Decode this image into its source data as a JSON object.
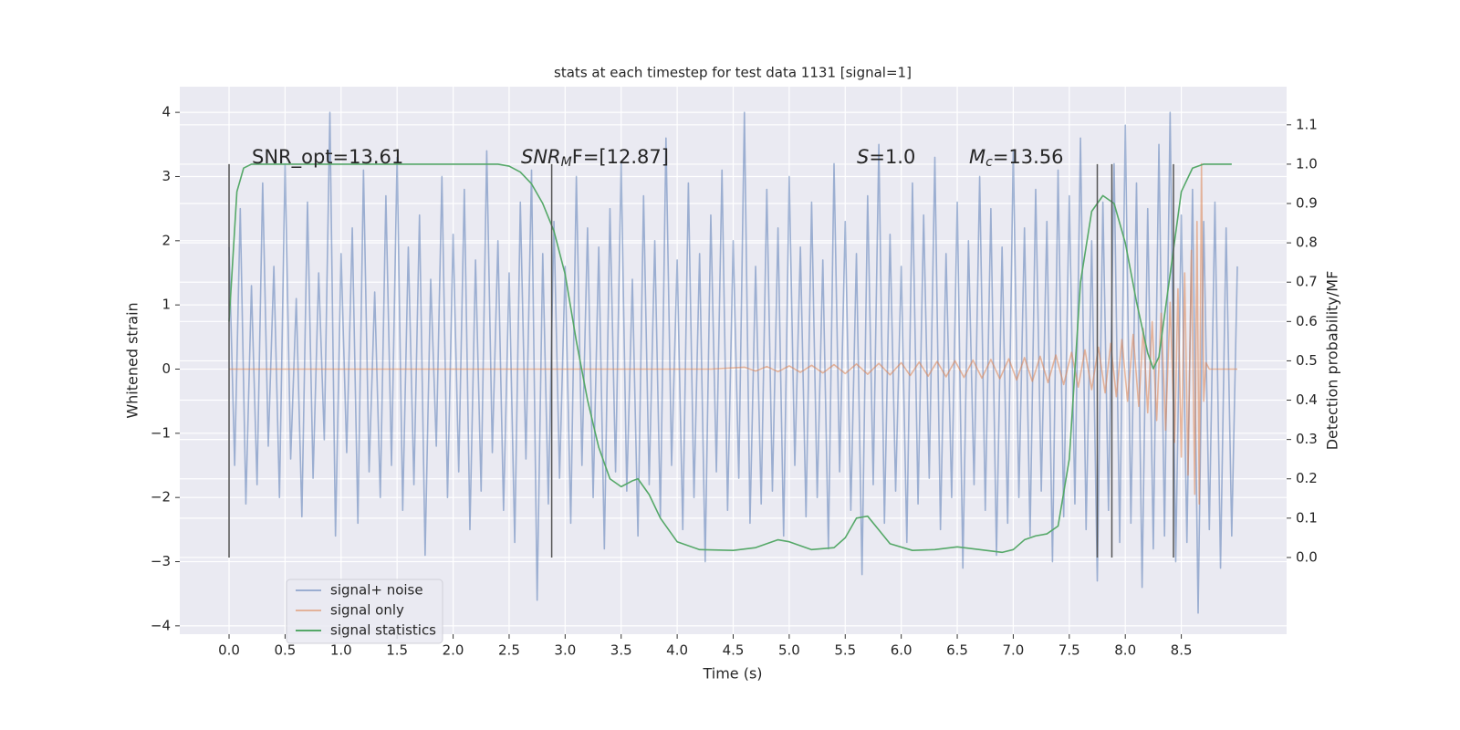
{
  "chart_data": {
    "type": "line",
    "title": "stats at each timestep for test data 1131 [signal=1]",
    "xlabel": "Time (s)",
    "ylabel": "Whitened strain",
    "y2label": "Detection probability/MF",
    "grid": true,
    "legend": "lower left",
    "xlim": [
      -0.44,
      9.44
    ],
    "ylim": [
      -4.13,
      4.4
    ],
    "y2lim": [
      -0.195,
      1.197
    ],
    "xticks": [
      {
        "value": 0,
        "label": "0.0"
      },
      0.5,
      {
        "value": 1,
        "label": "1.0"
      },
      1.5,
      {
        "value": 2,
        "label": "2.0"
      },
      2.5,
      {
        "value": 3,
        "label": "3.0"
      },
      3.5,
      {
        "value": 4,
        "label": "4.0"
      },
      4.5,
      {
        "value": 5,
        "label": "5.0"
      },
      5.5,
      {
        "value": 6,
        "label": "6.0"
      },
      6.5,
      {
        "value": 7,
        "label": "7.0"
      },
      7.5,
      {
        "value": 8,
        "label": "8.0"
      },
      8.5
    ],
    "yticks": [
      {
        "value": -4,
        "label": "−4"
      },
      {
        "value": -3,
        "label": "−3"
      },
      {
        "value": -2,
        "label": "−2"
      },
      {
        "value": -1,
        "label": "−1"
      },
      0,
      1,
      2,
      3,
      4
    ],
    "y2ticks": [
      {
        "value": 0,
        "label": "0.0"
      },
      0.1,
      0.2,
      0.3,
      0.4,
      0.5,
      0.6,
      0.7,
      0.8,
      0.9,
      {
        "value": 1,
        "label": "1.0"
      },
      1.1
    ],
    "vlines": {
      "x": [
        0,
        2.88,
        7.75,
        7.88,
        8.43
      ],
      "ymin": 0,
      "ymax": 1,
      "color": "#555555"
    },
    "annotations": [
      {
        "text": "SNR_opt=13.61"
      },
      {
        "main": "SNR",
        "sub": "M",
        "text": "F=[12.87]"
      },
      {
        "main": "S",
        "text": "=1.0"
      },
      {
        "main": "M",
        "sub": "c",
        "text": "=13.56"
      }
    ],
    "series": [
      {
        "name": "signal+ noise",
        "color": "#4c72b0",
        "opacity": 0.5,
        "axis": "y",
        "x": [
          0,
          0.05,
          0.1,
          0.15,
          0.2,
          0.25,
          0.3,
          0.35,
          0.4,
          0.45,
          0.5,
          0.55,
          0.6,
          0.65,
          0.7,
          0.75,
          0.8,
          0.85,
          0.9,
          0.95,
          1,
          1.05,
          1.1,
          1.15,
          1.2,
          1.25,
          1.3,
          1.35,
          1.4,
          1.45,
          1.5,
          1.55,
          1.6,
          1.65,
          1.7,
          1.75,
          1.8,
          1.85,
          1.9,
          1.95,
          2,
          2.05,
          2.1,
          2.15,
          2.2,
          2.25,
          2.3,
          2.35,
          2.4,
          2.45,
          2.5,
          2.55,
          2.6,
          2.65,
          2.7,
          2.75,
          2.8,
          2.85,
          2.9,
          2.95,
          3,
          3.05,
          3.1,
          3.15,
          3.2,
          3.25,
          3.3,
          3.35,
          3.4,
          3.45,
          3.5,
          3.55,
          3.6,
          3.65,
          3.7,
          3.75,
          3.8,
          3.85,
          3.9,
          3.95,
          4,
          4.05,
          4.1,
          4.15,
          4.2,
          4.25,
          4.3,
          4.35,
          4.4,
          4.45,
          4.5,
          4.55,
          4.6,
          4.65,
          4.7,
          4.75,
          4.8,
          4.85,
          4.9,
          4.95,
          5,
          5.05,
          5.1,
          5.15,
          5.2,
          5.25,
          5.3,
          5.35,
          5.4,
          5.45,
          5.5,
          5.55,
          5.6,
          5.65,
          5.7,
          5.75,
          5.8,
          5.85,
          5.9,
          5.95,
          6,
          6.05,
          6.1,
          6.15,
          6.2,
          6.25,
          6.3,
          6.35,
          6.4,
          6.45,
          6.5,
          6.55,
          6.6,
          6.65,
          6.7,
          6.75,
          6.8,
          6.85,
          6.9,
          6.95,
          7,
          7.05,
          7.1,
          7.15,
          7.2,
          7.25,
          7.3,
          7.35,
          7.4,
          7.45,
          7.5,
          7.55,
          7.6,
          7.65,
          7.7,
          7.75,
          7.8,
          7.85,
          7.9,
          7.95,
          8,
          8.05,
          8.1,
          8.15,
          8.2,
          8.25,
          8.3,
          8.35,
          8.4,
          8.45,
          8.5,
          8.55,
          8.6,
          8.65,
          8.7,
          8.75,
          8.8,
          8.85,
          8.9,
          8.95,
          9
        ],
        "values": [
          1.9,
          -1.5,
          2.5,
          -2.1,
          1.3,
          -1.8,
          2.9,
          -1.2,
          1.6,
          -2.0,
          3.2,
          -1.4,
          1.1,
          -2.3,
          2.6,
          -1.7,
          1.5,
          -1.1,
          4.0,
          -2.6,
          1.8,
          -1.3,
          2.2,
          -2.4,
          3.1,
          -1.6,
          1.2,
          -2.0,
          2.7,
          -1.5,
          3.3,
          -2.2,
          1.9,
          -1.8,
          2.4,
          -2.9,
          1.4,
          -1.2,
          3.0,
          -2.0,
          2.1,
          -1.6,
          2.8,
          -2.5,
          1.7,
          -1.9,
          3.4,
          -1.3,
          2.0,
          -2.2,
          1.5,
          -2.7,
          2.6,
          -1.4,
          3.1,
          -3.6,
          1.8,
          -2.1,
          2.3,
          -1.7,
          1.6,
          -2.4,
          3.0,
          -1.5,
          2.2,
          -2.0,
          1.9,
          -2.8,
          2.5,
          -1.6,
          3.2,
          -1.9,
          1.4,
          -2.6,
          2.7,
          -1.8,
          2.0,
          -2.3,
          3.6,
          -1.5,
          1.7,
          -2.5,
          2.9,
          -2.0,
          1.8,
          -3.0,
          2.4,
          -1.6,
          3.1,
          -2.2,
          2.0,
          -1.7,
          4.0,
          -2.4,
          1.6,
          -2.1,
          2.8,
          -1.9,
          2.2,
          -2.6,
          3.0,
          -1.5,
          1.9,
          -2.3,
          2.6,
          -2.0,
          1.7,
          -2.8,
          3.2,
          -1.6,
          2.3,
          -2.2,
          1.8,
          -3.2,
          2.7,
          -1.8,
          3.5,
          -2.4,
          2.1,
          -1.9,
          1.6,
          -2.7,
          2.9,
          -2.1,
          2.4,
          -1.7,
          3.3,
          -2.5,
          1.8,
          -2.0,
          2.6,
          -3.1,
          2.0,
          -1.8,
          3.0,
          -2.2,
          2.5,
          -2.9,
          1.9,
          -2.4,
          3.4,
          -2.0,
          2.2,
          -2.6,
          2.8,
          -1.9,
          2.3,
          -3.0,
          3.1,
          -2.3,
          2.7,
          -2.1,
          3.6,
          -2.5,
          2.0,
          -3.3,
          2.6,
          -2.2,
          3.2,
          -2.7,
          3.8,
          -2.4,
          2.9,
          -3.4,
          2.5,
          -2.8,
          3.5,
          -2.6,
          4.0,
          -3.0,
          2.4,
          -2.7,
          2.8,
          -3.8,
          2.3,
          -2.5,
          2.6,
          -3.1,
          2.2,
          -2.6,
          1.6
        ]
      },
      {
        "name": "signal only",
        "color": "#dd8452",
        "opacity": 0.55,
        "axis": "y",
        "x": [
          0,
          4.3,
          4.6,
          4.7,
          4.8,
          4.9,
          5.0,
          5.1,
          5.2,
          5.3,
          5.4,
          5.5,
          5.6,
          5.7,
          5.8,
          5.9,
          6.0,
          6.08,
          6.16,
          6.24,
          6.32,
          6.4,
          6.48,
          6.56,
          6.64,
          6.72,
          6.8,
          6.88,
          6.96,
          7.03,
          7.1,
          7.17,
          7.24,
          7.31,
          7.38,
          7.45,
          7.52,
          7.58,
          7.64,
          7.7,
          7.76,
          7.82,
          7.87,
          7.92,
          7.97,
          8.02,
          8.07,
          8.12,
          8.16,
          8.2,
          8.24,
          8.28,
          8.32,
          8.36,
          8.4,
          8.44,
          8.47,
          8.5,
          8.53,
          8.56,
          8.59,
          8.62,
          8.64,
          8.66,
          8.68,
          8.7,
          8.72,
          8.75,
          9.0
        ],
        "values": [
          0,
          0,
          0.03,
          -0.03,
          0.04,
          -0.04,
          0.05,
          -0.05,
          0.06,
          -0.06,
          0.07,
          -0.07,
          0.08,
          -0.08,
          0.09,
          -0.09,
          0.1,
          -0.1,
          0.11,
          -0.11,
          0.12,
          -0.12,
          0.13,
          -0.13,
          0.14,
          -0.14,
          0.15,
          -0.15,
          0.16,
          -0.17,
          0.18,
          -0.19,
          0.2,
          -0.21,
          0.22,
          -0.24,
          0.26,
          -0.28,
          0.3,
          -0.32,
          0.34,
          -0.37,
          0.4,
          -0.43,
          0.46,
          -0.5,
          0.54,
          -0.58,
          0.63,
          -0.68,
          0.74,
          -0.8,
          0.87,
          -0.95,
          1.04,
          -1.14,
          1.25,
          -1.37,
          1.5,
          -1.65,
          1.85,
          -1.95,
          2.3,
          -2.1,
          3.2,
          -0.5,
          0.1,
          0,
          0
        ]
      },
      {
        "name": "signal statistics",
        "color": "#55a868",
        "opacity": 1,
        "axis": "y2",
        "x": [
          0,
          0.07,
          0.13,
          0.2,
          1.0,
          2.0,
          2.4,
          2.5,
          2.6,
          2.7,
          2.8,
          2.9,
          3.0,
          3.1,
          3.2,
          3.3,
          3.4,
          3.5,
          3.6,
          3.65,
          3.75,
          3.85,
          4.0,
          4.2,
          4.5,
          4.7,
          4.9,
          5.0,
          5.2,
          5.4,
          5.5,
          5.6,
          5.7,
          5.8,
          5.9,
          6.1,
          6.3,
          6.5,
          6.7,
          6.9,
          7.0,
          7.1,
          7.2,
          7.3,
          7.4,
          7.5,
          7.6,
          7.7,
          7.8,
          7.9,
          8.0,
          8.1,
          8.2,
          8.25,
          8.3,
          8.4,
          8.5,
          8.6,
          8.7,
          8.95
        ],
        "values": [
          0.6,
          0.93,
          0.99,
          1.0,
          1.0,
          1.0,
          1.0,
          0.995,
          0.98,
          0.95,
          0.9,
          0.83,
          0.72,
          0.55,
          0.4,
          0.28,
          0.2,
          0.18,
          0.195,
          0.2,
          0.16,
          0.1,
          0.04,
          0.02,
          0.018,
          0.025,
          0.045,
          0.04,
          0.02,
          0.025,
          0.05,
          0.1,
          0.105,
          0.07,
          0.035,
          0.018,
          0.02,
          0.027,
          0.02,
          0.013,
          0.02,
          0.045,
          0.055,
          0.06,
          0.08,
          0.25,
          0.7,
          0.88,
          0.92,
          0.9,
          0.8,
          0.65,
          0.52,
          0.48,
          0.51,
          0.72,
          0.93,
          0.99,
          1.0,
          1.0
        ]
      }
    ]
  }
}
